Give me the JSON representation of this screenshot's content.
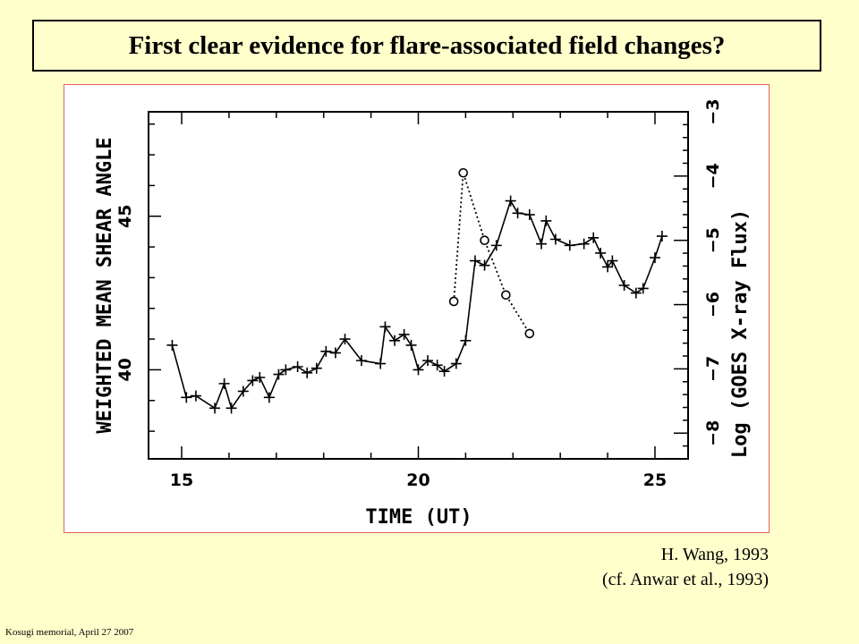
{
  "slide": {
    "title": "First clear evidence for flare-associated  field changes?",
    "credit_line1": "H. Wang, 1993",
    "credit_line2": "(cf. Anwar et al., 1993)",
    "footer": "Kosugi memorial, April 27 2007"
  },
  "chart_data": {
    "type": "line",
    "xlabel": "TIME (UT)",
    "ylabel": "WEIGHTED MEAN SHEAR ANGLE",
    "y2label": "Log (GOES X-ray Flux)",
    "xlim": [
      14.3,
      25.7
    ],
    "ylim": [
      37.1,
      48.4
    ],
    "y2lim": [
      -8.4,
      -3.0
    ],
    "xticks": [
      15,
      20,
      25
    ],
    "yticks": [
      40,
      45
    ],
    "y2ticks": [
      -8,
      -7,
      -6,
      -5,
      -4,
      -3
    ],
    "series": [
      {
        "axis": "left",
        "marker": "plus",
        "line": "solid",
        "x": [
          14.8,
          15.1,
          15.3,
          15.7,
          15.9,
          16.05,
          16.3,
          16.5,
          16.65,
          16.85,
          17.05,
          17.2,
          17.45,
          17.65,
          17.85,
          18.05,
          18.25,
          18.45,
          18.8,
          19.2,
          19.3,
          19.5,
          19.7,
          19.85,
          20.0,
          20.2,
          20.4,
          20.55,
          20.8,
          21.0,
          21.2,
          21.4,
          21.65,
          21.95,
          22.1,
          22.35,
          22.6,
          22.7,
          22.9,
          23.2,
          23.5,
          23.7,
          23.85,
          24.0,
          24.1,
          24.35,
          24.6,
          24.75,
          25.0,
          25.15
        ],
        "values": [
          40.8,
          39.1,
          39.15,
          38.75,
          39.55,
          38.75,
          39.3,
          39.65,
          39.75,
          39.1,
          39.85,
          40.0,
          40.1,
          39.9,
          40.05,
          40.6,
          40.55,
          41.0,
          40.3,
          40.2,
          41.4,
          40.95,
          41.15,
          40.8,
          40.0,
          40.3,
          40.15,
          39.95,
          40.2,
          40.95,
          43.55,
          43.4,
          44.05,
          45.5,
          45.1,
          45.05,
          44.1,
          44.85,
          44.25,
          44.05,
          44.1,
          44.3,
          43.8,
          43.35,
          43.55,
          42.75,
          42.5,
          42.65,
          43.65,
          44.35
        ]
      },
      {
        "axis": "right",
        "marker": "circle",
        "line": "dotted",
        "x": [
          20.75,
          20.95,
          21.4,
          21.85,
          22.35
        ],
        "values": [
          -5.95,
          -3.95,
          -5.0,
          -5.85,
          -6.45
        ]
      }
    ]
  }
}
